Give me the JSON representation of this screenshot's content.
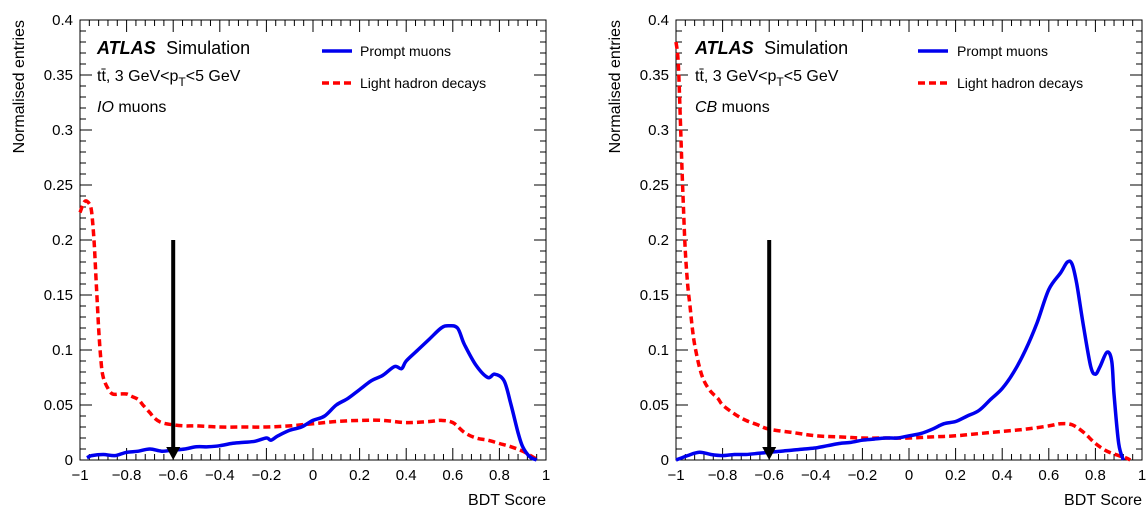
{
  "chart_data": [
    {
      "type": "line",
      "panel": "left",
      "xlabel": "BDT Score",
      "ylabel": "Normalised entries",
      "xlim": [
        -1,
        1
      ],
      "ylim": [
        0,
        0.4
      ],
      "x_ticks": [
        "−1",
        "−0.8",
        "−0.6",
        "−0.4",
        "−0.2",
        "0",
        "0.2",
        "0.4",
        "0.6",
        "0.8",
        "1"
      ],
      "y_ticks": [
        "0",
        "0.05",
        "0.1",
        "0.15",
        "0.2",
        "0.25",
        "0.3",
        "0.35",
        "0.4"
      ],
      "annotations": {
        "atlas": "ATLAS",
        "simulation": "Simulation",
        "process_prefix": "tt̄, 3 GeV<p",
        "process_sub": "T",
        "process_suffix": "<5 GeV",
        "muon_type": "IO",
        "muon_word": " muons"
      },
      "legend": {
        "position": "top-right"
      },
      "arrow": {
        "x": -0.6,
        "y_start": 0.2,
        "y_end": 0.0
      },
      "series": [
        {
          "name": "Prompt muons",
          "style": "solid",
          "color": "#0000ee",
          "x": [
            -0.97,
            -0.95,
            -0.9,
            -0.85,
            -0.8,
            -0.75,
            -0.7,
            -0.65,
            -0.6,
            -0.55,
            -0.5,
            -0.45,
            -0.4,
            -0.35,
            -0.3,
            -0.25,
            -0.2,
            -0.18,
            -0.15,
            -0.1,
            -0.05,
            0.0,
            0.05,
            0.1,
            0.15,
            0.2,
            0.25,
            0.3,
            0.35,
            0.38,
            0.4,
            0.45,
            0.5,
            0.55,
            0.58,
            0.62,
            0.65,
            0.7,
            0.75,
            0.78,
            0.82,
            0.85,
            0.88,
            0.9,
            0.93,
            0.96
          ],
          "y": [
            0.002,
            0.004,
            0.005,
            0.004,
            0.007,
            0.008,
            0.01,
            0.008,
            0.009,
            0.01,
            0.012,
            0.012,
            0.013,
            0.015,
            0.016,
            0.017,
            0.02,
            0.018,
            0.022,
            0.027,
            0.03,
            0.036,
            0.04,
            0.05,
            0.056,
            0.064,
            0.072,
            0.077,
            0.085,
            0.083,
            0.09,
            0.1,
            0.11,
            0.12,
            0.122,
            0.12,
            0.105,
            0.086,
            0.075,
            0.078,
            0.072,
            0.05,
            0.025,
            0.012,
            0.003,
            0.0
          ]
        },
        {
          "name": "Light hadron decays",
          "style": "dashed",
          "color": "#ff0000",
          "x": [
            -1.0,
            -0.98,
            -0.96,
            -0.95,
            -0.94,
            -0.93,
            -0.92,
            -0.91,
            -0.9,
            -0.88,
            -0.86,
            -0.83,
            -0.8,
            -0.78,
            -0.75,
            -0.73,
            -0.7,
            -0.68,
            -0.65,
            -0.6,
            -0.55,
            -0.5,
            -0.4,
            -0.3,
            -0.2,
            -0.1,
            0.0,
            0.1,
            0.2,
            0.3,
            0.4,
            0.5,
            0.55,
            0.6,
            0.65,
            0.7,
            0.75,
            0.8,
            0.85,
            0.9,
            0.95,
            0.97
          ],
          "y": [
            0.225,
            0.235,
            0.233,
            0.225,
            0.2,
            0.16,
            0.12,
            0.09,
            0.075,
            0.065,
            0.06,
            0.06,
            0.06,
            0.058,
            0.055,
            0.05,
            0.043,
            0.038,
            0.034,
            0.032,
            0.031,
            0.031,
            0.03,
            0.03,
            0.03,
            0.031,
            0.033,
            0.035,
            0.036,
            0.036,
            0.034,
            0.035,
            0.036,
            0.034,
            0.025,
            0.02,
            0.018,
            0.015,
            0.012,
            0.008,
            0.002,
            0.0
          ]
        }
      ]
    },
    {
      "type": "line",
      "panel": "right",
      "xlabel": "BDT Score",
      "ylabel": "Normalised entries",
      "xlim": [
        -1,
        1
      ],
      "ylim": [
        0,
        0.4
      ],
      "x_ticks": [
        "−1",
        "−0.8",
        "−0.6",
        "−0.4",
        "−0.2",
        "0",
        "0.2",
        "0.4",
        "0.6",
        "0.8",
        "1"
      ],
      "y_ticks": [
        "0",
        "0.05",
        "0.1",
        "0.15",
        "0.2",
        "0.25",
        "0.3",
        "0.35",
        "0.4"
      ],
      "annotations": {
        "atlas": "ATLAS",
        "simulation": "Simulation",
        "process_prefix": "tt̄, 3 GeV<p",
        "process_sub": "T",
        "process_suffix": "<5 GeV",
        "muon_type": "CB",
        "muon_word": " muons"
      },
      "legend": {
        "position": "top-right"
      },
      "arrow": {
        "x": -0.6,
        "y_start": 0.2,
        "y_end": 0.0
      },
      "series": [
        {
          "name": "Prompt muons",
          "style": "solid",
          "color": "#0000ee",
          "x": [
            -1.0,
            -0.95,
            -0.9,
            -0.85,
            -0.8,
            -0.75,
            -0.7,
            -0.65,
            -0.6,
            -0.55,
            -0.5,
            -0.45,
            -0.4,
            -0.35,
            -0.3,
            -0.25,
            -0.2,
            -0.15,
            -0.1,
            -0.05,
            0.0,
            0.05,
            0.1,
            0.15,
            0.2,
            0.25,
            0.3,
            0.35,
            0.4,
            0.45,
            0.5,
            0.55,
            0.6,
            0.65,
            0.68,
            0.7,
            0.72,
            0.75,
            0.78,
            0.8,
            0.82,
            0.85,
            0.87,
            0.88,
            0.9,
            0.92
          ],
          "y": [
            0.0,
            0.004,
            0.007,
            0.005,
            0.004,
            0.005,
            0.005,
            0.006,
            0.007,
            0.008,
            0.009,
            0.01,
            0.011,
            0.013,
            0.015,
            0.016,
            0.018,
            0.019,
            0.02,
            0.02,
            0.022,
            0.024,
            0.028,
            0.033,
            0.035,
            0.04,
            0.045,
            0.055,
            0.065,
            0.08,
            0.1,
            0.125,
            0.155,
            0.17,
            0.18,
            0.178,
            0.16,
            0.12,
            0.085,
            0.078,
            0.085,
            0.098,
            0.09,
            0.06,
            0.015,
            0.0
          ]
        },
        {
          "name": "Light hadron decays",
          "style": "dashed",
          "color": "#ff0000",
          "x": [
            -1.0,
            -0.99,
            -0.98,
            -0.97,
            -0.96,
            -0.95,
            -0.94,
            -0.93,
            -0.92,
            -0.9,
            -0.88,
            -0.85,
            -0.82,
            -0.8,
            -0.75,
            -0.7,
            -0.65,
            -0.6,
            -0.5,
            -0.4,
            -0.3,
            -0.2,
            -0.1,
            0.0,
            0.1,
            0.2,
            0.3,
            0.4,
            0.5,
            0.6,
            0.65,
            0.7,
            0.75,
            0.8,
            0.85,
            0.9,
            0.93,
            0.95
          ],
          "y": [
            0.38,
            0.36,
            0.3,
            0.24,
            0.19,
            0.16,
            0.14,
            0.12,
            0.105,
            0.085,
            0.072,
            0.062,
            0.056,
            0.05,
            0.042,
            0.036,
            0.032,
            0.028,
            0.025,
            0.022,
            0.021,
            0.02,
            0.02,
            0.02,
            0.021,
            0.022,
            0.024,
            0.026,
            0.028,
            0.031,
            0.033,
            0.032,
            0.025,
            0.015,
            0.008,
            0.004,
            0.002,
            0.0
          ]
        }
      ]
    }
  ]
}
